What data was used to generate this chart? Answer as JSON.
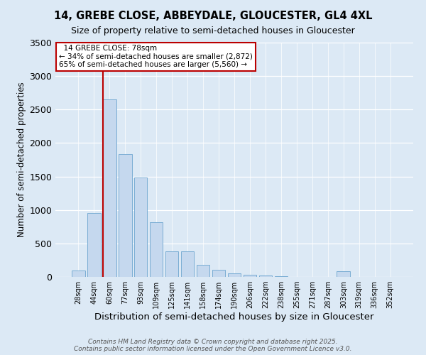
{
  "title": "14, GREBE CLOSE, ABBEYDALE, GLOUCESTER, GL4 4XL",
  "subtitle": "Size of property relative to semi-detached houses in Gloucester",
  "xlabel": "Distribution of semi-detached houses by size in Gloucester",
  "ylabel": "Number of semi-detached properties",
  "categories": [
    "28sqm",
    "44sqm",
    "60sqm",
    "77sqm",
    "93sqm",
    "109sqm",
    "125sqm",
    "141sqm",
    "158sqm",
    "174sqm",
    "190sqm",
    "206sqm",
    "222sqm",
    "238sqm",
    "255sqm",
    "271sqm",
    "287sqm",
    "303sqm",
    "319sqm",
    "336sqm",
    "352sqm"
  ],
  "values": [
    100,
    950,
    2650,
    1830,
    1490,
    820,
    380,
    380,
    180,
    110,
    50,
    30,
    20,
    10,
    5,
    5,
    5,
    80,
    5,
    5,
    5
  ],
  "bar_color": "#c5d8ee",
  "bar_edge_color": "#7aadd4",
  "vline_color": "#bb0000",
  "vline_x": 1.6,
  "property_label": "14 GREBE CLOSE: 78sqm",
  "annotation_smaller": "← 34% of semi-detached houses are smaller (2,872)",
  "annotation_larger": "65% of semi-detached houses are larger (5,560) →",
  "footer1": "Contains HM Land Registry data © Crown copyright and database right 2025.",
  "footer2": "Contains public sector information licensed under the Open Government Licence v3.0.",
  "bg_color": "#dce9f5",
  "ylim": [
    0,
    3500
  ],
  "yticks": [
    0,
    500,
    1000,
    1500,
    2000,
    2500,
    3000,
    3500
  ],
  "title_fontsize": 10.5,
  "subtitle_fontsize": 9,
  "ylabel_fontsize": 8.5,
  "xlabel_fontsize": 9.5,
  "tick_fontsize": 7,
  "annot_fontsize": 7.5,
  "footer_fontsize": 6.5
}
